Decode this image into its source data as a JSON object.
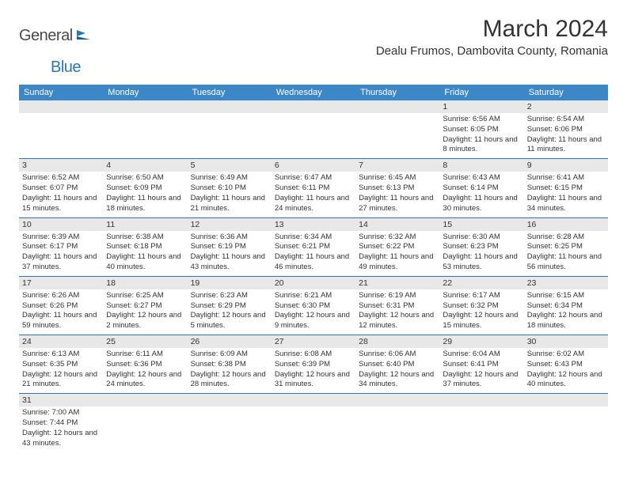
{
  "logo": {
    "general": "General",
    "blue": "Blue"
  },
  "title": "March 2024",
  "location": "Dealu Frumos, Dambovita County, Romania",
  "colors": {
    "header_bg": "#3c87c7",
    "header_fg": "#ffffff",
    "grid_line": "#2a77bd",
    "daynum_bg": "#e8e8e8",
    "logo_blue": "#2a77bd"
  },
  "day_labels": [
    "Sunday",
    "Monday",
    "Tuesday",
    "Wednesday",
    "Thursday",
    "Friday",
    "Saturday"
  ],
  "weeks": [
    [
      null,
      null,
      null,
      null,
      null,
      {
        "n": "1",
        "sr": "Sunrise: 6:56 AM",
        "ss": "Sunset: 6:05 PM",
        "dl": "Daylight: 11 hours and 8 minutes."
      },
      {
        "n": "2",
        "sr": "Sunrise: 6:54 AM",
        "ss": "Sunset: 6:06 PM",
        "dl": "Daylight: 11 hours and 11 minutes."
      }
    ],
    [
      {
        "n": "3",
        "sr": "Sunrise: 6:52 AM",
        "ss": "Sunset: 6:07 PM",
        "dl": "Daylight: 11 hours and 15 minutes."
      },
      {
        "n": "4",
        "sr": "Sunrise: 6:50 AM",
        "ss": "Sunset: 6:09 PM",
        "dl": "Daylight: 11 hours and 18 minutes."
      },
      {
        "n": "5",
        "sr": "Sunrise: 6:49 AM",
        "ss": "Sunset: 6:10 PM",
        "dl": "Daylight: 11 hours and 21 minutes."
      },
      {
        "n": "6",
        "sr": "Sunrise: 6:47 AM",
        "ss": "Sunset: 6:11 PM",
        "dl": "Daylight: 11 hours and 24 minutes."
      },
      {
        "n": "7",
        "sr": "Sunrise: 6:45 AM",
        "ss": "Sunset: 6:13 PM",
        "dl": "Daylight: 11 hours and 27 minutes."
      },
      {
        "n": "8",
        "sr": "Sunrise: 6:43 AM",
        "ss": "Sunset: 6:14 PM",
        "dl": "Daylight: 11 hours and 30 minutes."
      },
      {
        "n": "9",
        "sr": "Sunrise: 6:41 AM",
        "ss": "Sunset: 6:15 PM",
        "dl": "Daylight: 11 hours and 34 minutes."
      }
    ],
    [
      {
        "n": "10",
        "sr": "Sunrise: 6:39 AM",
        "ss": "Sunset: 6:17 PM",
        "dl": "Daylight: 11 hours and 37 minutes."
      },
      {
        "n": "11",
        "sr": "Sunrise: 6:38 AM",
        "ss": "Sunset: 6:18 PM",
        "dl": "Daylight: 11 hours and 40 minutes."
      },
      {
        "n": "12",
        "sr": "Sunrise: 6:36 AM",
        "ss": "Sunset: 6:19 PM",
        "dl": "Daylight: 11 hours and 43 minutes."
      },
      {
        "n": "13",
        "sr": "Sunrise: 6:34 AM",
        "ss": "Sunset: 6:21 PM",
        "dl": "Daylight: 11 hours and 46 minutes."
      },
      {
        "n": "14",
        "sr": "Sunrise: 6:32 AM",
        "ss": "Sunset: 6:22 PM",
        "dl": "Daylight: 11 hours and 49 minutes."
      },
      {
        "n": "15",
        "sr": "Sunrise: 6:30 AM",
        "ss": "Sunset: 6:23 PM",
        "dl": "Daylight: 11 hours and 53 minutes."
      },
      {
        "n": "16",
        "sr": "Sunrise: 6:28 AM",
        "ss": "Sunset: 6:25 PM",
        "dl": "Daylight: 11 hours and 56 minutes."
      }
    ],
    [
      {
        "n": "17",
        "sr": "Sunrise: 6:26 AM",
        "ss": "Sunset: 6:26 PM",
        "dl": "Daylight: 11 hours and 59 minutes."
      },
      {
        "n": "18",
        "sr": "Sunrise: 6:25 AM",
        "ss": "Sunset: 6:27 PM",
        "dl": "Daylight: 12 hours and 2 minutes."
      },
      {
        "n": "19",
        "sr": "Sunrise: 6:23 AM",
        "ss": "Sunset: 6:29 PM",
        "dl": "Daylight: 12 hours and 5 minutes."
      },
      {
        "n": "20",
        "sr": "Sunrise: 6:21 AM",
        "ss": "Sunset: 6:30 PM",
        "dl": "Daylight: 12 hours and 9 minutes."
      },
      {
        "n": "21",
        "sr": "Sunrise: 6:19 AM",
        "ss": "Sunset: 6:31 PM",
        "dl": "Daylight: 12 hours and 12 minutes."
      },
      {
        "n": "22",
        "sr": "Sunrise: 6:17 AM",
        "ss": "Sunset: 6:32 PM",
        "dl": "Daylight: 12 hours and 15 minutes."
      },
      {
        "n": "23",
        "sr": "Sunrise: 6:15 AM",
        "ss": "Sunset: 6:34 PM",
        "dl": "Daylight: 12 hours and 18 minutes."
      }
    ],
    [
      {
        "n": "24",
        "sr": "Sunrise: 6:13 AM",
        "ss": "Sunset: 6:35 PM",
        "dl": "Daylight: 12 hours and 21 minutes."
      },
      {
        "n": "25",
        "sr": "Sunrise: 6:11 AM",
        "ss": "Sunset: 6:36 PM",
        "dl": "Daylight: 12 hours and 24 minutes."
      },
      {
        "n": "26",
        "sr": "Sunrise: 6:09 AM",
        "ss": "Sunset: 6:38 PM",
        "dl": "Daylight: 12 hours and 28 minutes."
      },
      {
        "n": "27",
        "sr": "Sunrise: 6:08 AM",
        "ss": "Sunset: 6:39 PM",
        "dl": "Daylight: 12 hours and 31 minutes."
      },
      {
        "n": "28",
        "sr": "Sunrise: 6:06 AM",
        "ss": "Sunset: 6:40 PM",
        "dl": "Daylight: 12 hours and 34 minutes."
      },
      {
        "n": "29",
        "sr": "Sunrise: 6:04 AM",
        "ss": "Sunset: 6:41 PM",
        "dl": "Daylight: 12 hours and 37 minutes."
      },
      {
        "n": "30",
        "sr": "Sunrise: 6:02 AM",
        "ss": "Sunset: 6:43 PM",
        "dl": "Daylight: 12 hours and 40 minutes."
      }
    ],
    [
      {
        "n": "31",
        "sr": "Sunrise: 7:00 AM",
        "ss": "Sunset: 7:44 PM",
        "dl": "Daylight: 12 hours and 43 minutes."
      },
      null,
      null,
      null,
      null,
      null,
      null
    ]
  ]
}
